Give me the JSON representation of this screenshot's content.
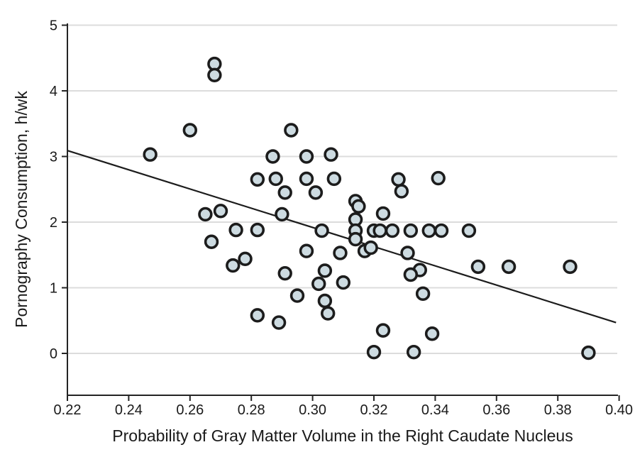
{
  "chart_data": {
    "type": "scatter",
    "title": "",
    "xlabel": "Probability of Gray Matter Volume in the Right Caudate Nucleus",
    "ylabel": "Pornography Consumption, h/wk",
    "xlim": [
      0.22,
      0.4
    ],
    "ylim": [
      0,
      5
    ],
    "xtick_labels": [
      "0.22",
      "0.24",
      "0.26",
      "0.28",
      "0.30",
      "0.32",
      "0.34",
      "0.36",
      "0.38",
      "0.40"
    ],
    "ytick_labels": [
      "0",
      "1",
      "2",
      "3",
      "4",
      "5"
    ],
    "grid": "horizontal-only",
    "legend": "none",
    "points": [
      [
        0.247,
        3.03
      ],
      [
        0.26,
        3.4
      ],
      [
        0.268,
        4.41
      ],
      [
        0.268,
        4.24
      ],
      [
        0.265,
        2.12
      ],
      [
        0.27,
        2.17
      ],
      [
        0.267,
        1.7
      ],
      [
        0.275,
        1.88
      ],
      [
        0.282,
        1.88
      ],
      [
        0.278,
        1.44
      ],
      [
        0.274,
        1.34
      ],
      [
        0.282,
        2.65
      ],
      [
        0.287,
        3.0
      ],
      [
        0.293,
        3.4
      ],
      [
        0.298,
        3.0
      ],
      [
        0.306,
        3.03
      ],
      [
        0.288,
        2.66
      ],
      [
        0.291,
        2.45
      ],
      [
        0.298,
        2.66
      ],
      [
        0.301,
        2.45
      ],
      [
        0.307,
        2.66
      ],
      [
        0.328,
        2.65
      ],
      [
        0.329,
        2.47
      ],
      [
        0.341,
        2.67
      ],
      [
        0.29,
        2.12
      ],
      [
        0.314,
        2.32
      ],
      [
        0.315,
        2.24
      ],
      [
        0.323,
        2.13
      ],
      [
        0.314,
        2.04
      ],
      [
        0.303,
        1.87
      ],
      [
        0.314,
        1.87
      ],
      [
        0.32,
        1.87
      ],
      [
        0.322,
        1.87
      ],
      [
        0.326,
        1.87
      ],
      [
        0.332,
        1.87
      ],
      [
        0.338,
        1.87
      ],
      [
        0.342,
        1.87
      ],
      [
        0.351,
        1.87
      ],
      [
        0.314,
        1.74
      ],
      [
        0.317,
        1.56
      ],
      [
        0.319,
        1.61
      ],
      [
        0.298,
        1.56
      ],
      [
        0.309,
        1.53
      ],
      [
        0.331,
        1.53
      ],
      [
        0.291,
        1.22
      ],
      [
        0.304,
        1.26
      ],
      [
        0.302,
        1.06
      ],
      [
        0.31,
        1.08
      ],
      [
        0.335,
        1.27
      ],
      [
        0.332,
        1.2
      ],
      [
        0.354,
        1.32
      ],
      [
        0.364,
        1.32
      ],
      [
        0.384,
        1.32
      ],
      [
        0.336,
        0.91
      ],
      [
        0.295,
        0.88
      ],
      [
        0.304,
        0.8
      ],
      [
        0.305,
        0.61
      ],
      [
        0.282,
        0.58
      ],
      [
        0.289,
        0.47
      ],
      [
        0.323,
        0.35
      ],
      [
        0.339,
        0.3
      ],
      [
        0.32,
        0.02
      ],
      [
        0.333,
        0.02
      ],
      [
        0.39,
        0.01
      ]
    ],
    "trend_line": {
      "x1": 0.22,
      "y1": 3.09,
      "x2": 0.399,
      "y2": 0.47
    },
    "colors": {
      "point_fill": "#cddbe1",
      "point_stroke": "#1c1c1c",
      "grid": "#dcdcdc",
      "axis": "#242424",
      "trend": "#1c1c1c",
      "text": "#1a1a1a"
    }
  }
}
